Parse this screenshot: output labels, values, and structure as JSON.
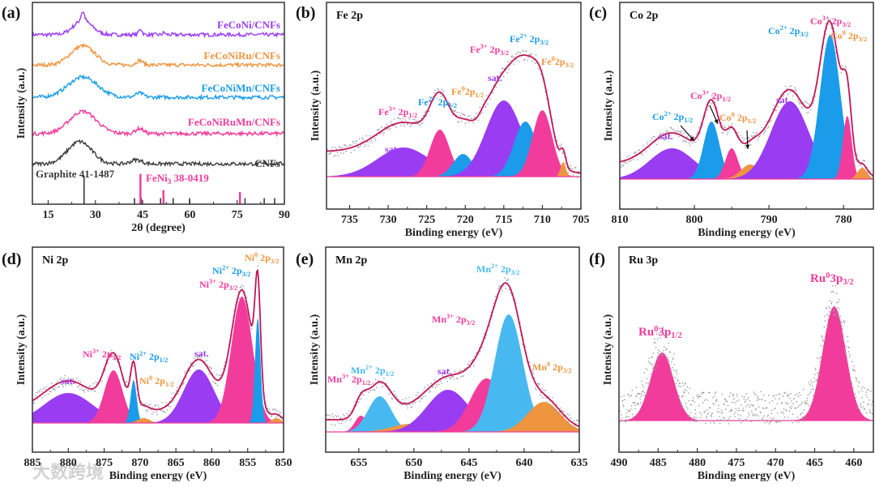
{
  "colors": {
    "purple": "#9a3cf2",
    "pink": "#f23c9c",
    "blue": "#1a9cea",
    "lightblue": "#48b9f0",
    "orange": "#ef9540",
    "envelope": "#c3175a",
    "dots": "#9a9a9a",
    "black": "#3a3a3a"
  },
  "watermark": "大数跨境",
  "chart_data": [
    {
      "id": "a",
      "tag": "(a)",
      "type": "line",
      "title": "",
      "xlabel": "2θ (degree)",
      "ylabel": "Intensity (a.u.)",
      "xlim": [
        10,
        90
      ],
      "ylim": [
        0,
        10
      ],
      "xticks": [
        15,
        30,
        45,
        60,
        75,
        90
      ],
      "series": [
        {
          "name": "FeCoNi/CNFs",
          "color": "#9a3cf2",
          "offset": 8.4,
          "peaks": [
            [
              26,
              0.7,
              7
            ],
            [
              26,
              0.45,
              1.3
            ],
            [
              44.3,
              0.3,
              1.2
            ],
            [
              51.8,
              0.1,
              1
            ]
          ]
        },
        {
          "name": "FeCoNiRu/CNFs",
          "color": "#ef9540",
          "offset": 6.9,
          "peaks": [
            [
              26,
              0.95,
              9
            ],
            [
              44,
              0.22,
              2.5
            ]
          ]
        },
        {
          "name": "FeCoNiMn/CNFs",
          "color": "#1a9cea",
          "offset": 5.3,
          "peaks": [
            [
              26,
              1.0,
              11
            ],
            [
              44,
              0.2,
              3
            ]
          ]
        },
        {
          "name": "FeCoNiRuMn/CNFs",
          "color": "#f23c9c",
          "offset": 3.5,
          "peaks": [
            [
              26,
              1.1,
              10
            ],
            [
              44,
              0.25,
              3
            ]
          ]
        },
        {
          "name": "CNFs",
          "color": "#3a3a3a",
          "offset": 2.0,
          "peaks": [
            [
              25,
              1.1,
              9
            ],
            [
              43,
              0.2,
              4
            ]
          ]
        }
      ],
      "references": [
        {
          "name": "Graphite 41-1487",
          "color": "#3a3a3a",
          "lines": [
            [
              26.4,
              1.4
            ],
            [
              42.4,
              0.3
            ],
            [
              44.6,
              0.3
            ],
            [
              50.7,
              0.3
            ],
            [
              54.7,
              0.3
            ],
            [
              59.9,
              0.3
            ],
            [
              77.5,
              0.3
            ],
            [
              83.6,
              0.3
            ],
            [
              86.9,
              0.3
            ]
          ]
        },
        {
          "name": "FeNi",
          "name_sub": "3",
          "name_post": " 38-0419",
          "color": "#f23c9c",
          "lines": [
            [
              44.3,
              1.5
            ],
            [
              51.6,
              0.7
            ],
            [
              75.9,
              0.6
            ]
          ]
        }
      ]
    },
    {
      "id": "b",
      "tag": "(b)",
      "type": "area",
      "title": "Fe 2p",
      "xlabel": "Binding energy (eV)",
      "ylabel": "Intensity (a.u.)",
      "xlim": [
        738,
        705
      ],
      "ylim": [
        -0.2,
        1.075
      ],
      "xticks": [
        735,
        730,
        725,
        720,
        715,
        710,
        705
      ],
      "background": {
        "step": 0.14,
        "center": 712,
        "width": 2.5
      },
      "peaks": [
        {
          "center": 728,
          "height": 0.18,
          "fwhm": 8,
          "color": "purple"
        },
        {
          "center": 723.3,
          "height": 0.29,
          "fwhm": 3,
          "color": "pink"
        },
        {
          "center": 720.3,
          "height": 0.14,
          "fwhm": 3,
          "color": "blue"
        },
        {
          "center": 717.6,
          "height": 0.03,
          "fwhm": 1.5,
          "color": "orange"
        },
        {
          "center": 715,
          "height": 0.47,
          "fwhm": 5.5,
          "color": "purple"
        },
        {
          "center": 712.2,
          "height": 0.34,
          "fwhm": 3.5,
          "color": "blue"
        },
        {
          "center": 710,
          "height": 0.41,
          "fwhm": 3,
          "color": "pink"
        },
        {
          "center": 707.3,
          "height": 0.09,
          "fwhm": 0.8,
          "color": "orange"
        }
      ],
      "labels": [
        {
          "text": "Fe",
          "sup": "3+",
          "post": " 2p",
          "sub": "1/2",
          "color": "pink"
        },
        {
          "text": "Fe",
          "sup": "2+",
          "post": " 2p",
          "sub": "1/2",
          "color": "blue"
        },
        {
          "text": "Fe",
          "sup": "0",
          "post": "2p",
          "sub": "1/2",
          "color": "orange"
        },
        {
          "text": "sat.",
          "color": "purple"
        },
        {
          "text": "Fe",
          "sup": "3+",
          "post": " 2p",
          "sub": "3/2",
          "color": "pink"
        },
        {
          "text": "Fe",
          "sup": "2+",
          "post": " 2p",
          "sub": "3/2",
          "color": "blue"
        },
        {
          "text": "Fe",
          "sup": "0",
          "post": "2p",
          "sub": "3/2",
          "color": "orange"
        },
        {
          "text": "sat.",
          "color": "purple"
        }
      ]
    },
    {
      "id": "c",
      "tag": "(c)",
      "type": "area",
      "title": "Co 2p",
      "xlabel": "Binding energy (eV)",
      "ylabel": "Intensity (a.u.)",
      "xlim": [
        810,
        776
      ],
      "ylim": [
        -0.185,
        1.09
      ],
      "xticks": [
        810,
        800,
        790,
        780
      ],
      "background": {
        "step": 0.08,
        "center": 785,
        "width": 2.5
      },
      "peaks": [
        {
          "center": 803,
          "height": 0.19,
          "fwhm": 7,
          "color": "purple"
        },
        {
          "center": 797.7,
          "height": 0.355,
          "fwhm": 2.5,
          "color": "blue"
        },
        {
          "center": 795,
          "height": 0.19,
          "fwhm": 2,
          "color": "pink"
        },
        {
          "center": 792.5,
          "height": 0.09,
          "fwhm": 3,
          "color": "orange"
        },
        {
          "center": 787.2,
          "height": 0.48,
          "fwhm": 6,
          "color": "purple"
        },
        {
          "center": 781.8,
          "height": 0.89,
          "fwhm": 3.2,
          "color": "blue"
        },
        {
          "center": 779.5,
          "height": 0.39,
          "fwhm": 1.4,
          "color": "pink"
        },
        {
          "center": 777.5,
          "height": 0.07,
          "fwhm": 1.5,
          "color": "orange"
        }
      ],
      "labels": [
        {
          "text": "sat.",
          "color": "purple"
        },
        {
          "text": "Co",
          "sup": "2+",
          "post": " 2p",
          "sub": "1/2",
          "color": "blue"
        },
        {
          "text": "Co",
          "sup": "3+",
          "post": " 2p",
          "sub": "1/2",
          "color": "pink"
        },
        {
          "text": "Co",
          "sup": "0",
          "post": " 2p",
          "sub": "1/2",
          "color": "orange"
        },
        {
          "text": "sat.",
          "color": "purple"
        },
        {
          "text": "Co",
          "sup": "2+",
          "post": " 2p",
          "sub": "3/2",
          "color": "blue"
        },
        {
          "text": "Co",
          "sup": "3+",
          "post": " 2p",
          "sub": "3/2",
          "color": "pink"
        },
        {
          "text": "Co",
          "sup": "0",
          "post": " 2p",
          "sub": "3/2",
          "color": "orange"
        }
      ]
    },
    {
      "id": "d",
      "tag": "(d)",
      "type": "area",
      "title": "Ni 2p",
      "xlabel": "Binding energy (eV)",
      "ylabel": "Intensity (a.u.)",
      "xlim": [
        885,
        850
      ],
      "ylim": [
        -0.18,
        1.085
      ],
      "xticks": [
        885,
        880,
        875,
        870,
        865,
        860,
        855,
        850
      ],
      "background": {
        "step": 0.06,
        "center": 858,
        "width": 3
      },
      "peaks": [
        {
          "center": 880,
          "height": 0.185,
          "fwhm": 8,
          "color": "purple"
        },
        {
          "center": 873.7,
          "height": 0.325,
          "fwhm": 3,
          "color": "pink"
        },
        {
          "center": 870.9,
          "height": 0.265,
          "fwhm": 1,
          "color": "blue"
        },
        {
          "center": 869.5,
          "height": 0.03,
          "fwhm": 2,
          "color": "orange"
        },
        {
          "center": 861.8,
          "height": 0.33,
          "fwhm": 5,
          "color": "purple"
        },
        {
          "center": 855.8,
          "height": 0.78,
          "fwhm": 3.5,
          "color": "pink"
        },
        {
          "center": 853.6,
          "height": 0.65,
          "fwhm": 0.9,
          "color": "blue"
        },
        {
          "center": 851,
          "height": 0.03,
          "fwhm": 1.5,
          "color": "orange"
        }
      ],
      "labels": [
        {
          "text": "sat.",
          "color": "purple"
        },
        {
          "text": "Ni",
          "sup": "3+",
          "post": " 2p",
          "sub": "3/2",
          "color": "pink"
        },
        {
          "text": "Ni",
          "sup": "2+",
          "post": " 2p",
          "sub": "1/2",
          "color": "blue"
        },
        {
          "text": "Ni",
          "sup": "0",
          "post": " 2p",
          "sub": "1/2",
          "color": "orange"
        },
        {
          "text": "sat.",
          "color": "purple"
        },
        {
          "text": "Ni",
          "sup": "3+",
          "post": " 2p",
          "sub": "3/2",
          "color": "pink"
        },
        {
          "text": "Ni",
          "sup": "2+",
          "post": " 2p",
          "sub": "3/2",
          "color": "blue"
        },
        {
          "text": "Ni",
          "sup": "0",
          "post": " 2p",
          "sub": "3/2",
          "color": "orange"
        }
      ]
    },
    {
      "id": "e",
      "tag": "(e)",
      "type": "area",
      "title": "Mn 2p",
      "xlabel": "Binding energy (eV)",
      "ylabel": "Intensity (a.u.)",
      "xlim": [
        658,
        635
      ],
      "ylim": [
        -0.125,
        1.14
      ],
      "xticks": [
        655,
        650,
        645,
        640,
        635
      ],
      "background": {
        "step": 0.06,
        "center": 645,
        "width": 2
      },
      "peaks": [
        {
          "center": 654.8,
          "height": 0.1,
          "fwhm": 1.3,
          "color": "pink"
        },
        {
          "center": 653.1,
          "height": 0.22,
          "fwhm": 2.5,
          "color": "lightblue"
        },
        {
          "center": 650.3,
          "height": 0.05,
          "fwhm": 4,
          "color": "orange"
        },
        {
          "center": 646.9,
          "height": 0.26,
          "fwhm": 4.5,
          "color": "purple"
        },
        {
          "center": 643.4,
          "height": 0.33,
          "fwhm": 3.5,
          "color": "pink"
        },
        {
          "center": 641.4,
          "height": 0.725,
          "fwhm": 3,
          "color": "lightblue"
        },
        {
          "center": 638.2,
          "height": 0.185,
          "fwhm": 3.5,
          "color": "orange"
        }
      ],
      "labels": [
        {
          "text": "Mn",
          "sup": "3+",
          "post": " 2p",
          "sub": "1/2",
          "color": "pink"
        },
        {
          "text": "Mn",
          "sup": "2+",
          "post": " 2p",
          "sub": "1/2",
          "color": "lightblue"
        },
        {
          "text": "sat.",
          "color": "purple"
        },
        {
          "text": "Mn",
          "sup": "3+",
          "post": " 2p",
          "sub": "3/2",
          "color": "pink"
        },
        {
          "text": "Mn",
          "sup": "2+",
          "post": " 2p",
          "sub": "3/2",
          "color": "lightblue"
        },
        {
          "text": "Mn",
          "sup": "0",
          "post": " 2p",
          "sub": "3/2",
          "color": "orange"
        }
      ]
    },
    {
      "id": "f",
      "tag": "(f)",
      "type": "area",
      "title": "Ru 3p",
      "xlabel": "Binding energy (eV)",
      "ylabel": "Intensity (a.u.)",
      "xlim": [
        490,
        457.5
      ],
      "ylim": [
        -0.195,
        1.07
      ],
      "xticks": [
        490,
        485,
        480,
        475,
        470,
        465,
        460
      ],
      "background": {
        "step": 0,
        "center": 470,
        "width": 3
      },
      "no_envelope": true,
      "peaks": [
        {
          "center": 484.5,
          "height": 0.42,
          "fwhm": 3.5,
          "color": "pink"
        },
        {
          "center": 462.5,
          "height": 0.705,
          "fwhm": 3.5,
          "color": "pink"
        }
      ],
      "labels": [
        {
          "text": "Ru",
          "sup": "0",
          "post": "3p",
          "sub": "1/2",
          "color": "pink"
        },
        {
          "text": "Ru",
          "sup": "0",
          "post": "3p",
          "sub": "3/2",
          "color": "pink"
        }
      ]
    }
  ]
}
